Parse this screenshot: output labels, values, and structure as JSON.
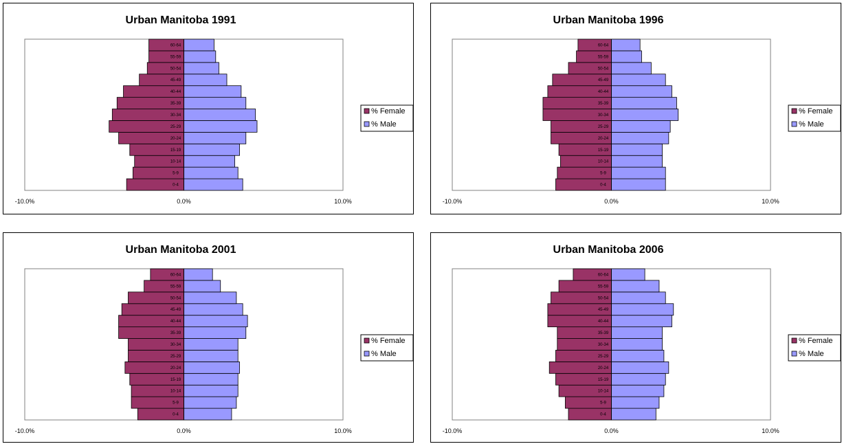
{
  "colors": {
    "female": "#993366",
    "male": "#9999ff",
    "border": "#000000",
    "plot_border": "#808080"
  },
  "chart_data": [
    {
      "type": "bar",
      "orientation": "horizontal",
      "layout": "population-pyramid",
      "title": "Urban Manitoba 1991",
      "categories": [
        "0-4",
        "5-9",
        "10-14",
        "15-19",
        "20-24",
        "25-29",
        "30-34",
        "35-39",
        "40-44",
        "45-49",
        "50-54",
        "55-59",
        "60-64"
      ],
      "series": [
        {
          "name": "% Female",
          "values": [
            -3.6,
            -3.2,
            -3.1,
            -3.4,
            -4.1,
            -4.7,
            -4.5,
            -4.2,
            -3.8,
            -2.8,
            -2.3,
            -2.2,
            -2.2
          ]
        },
        {
          "name": "% Male",
          "values": [
            3.7,
            3.4,
            3.2,
            3.5,
            3.9,
            4.6,
            4.5,
            3.9,
            3.6,
            2.7,
            2.2,
            2.0,
            1.9
          ]
        }
      ],
      "xlim": [
        -10,
        10
      ],
      "x_ticks": [
        "-10.0%",
        "0.0%",
        "10.0%"
      ],
      "legend_position": "right"
    },
    {
      "type": "bar",
      "orientation": "horizontal",
      "layout": "population-pyramid",
      "title": "Urban Manitoba 1996",
      "categories": [
        "0-4",
        "5-9",
        "10-14",
        "15-19",
        "20-24",
        "25-29",
        "30-34",
        "35-39",
        "40-44",
        "45-49",
        "50-54",
        "55-59",
        "60-64"
      ],
      "series": [
        {
          "name": "% Female",
          "values": [
            -3.5,
            -3.4,
            -3.2,
            -3.3,
            -3.8,
            -3.8,
            -4.3,
            -4.3,
            -4.0,
            -3.7,
            -2.7,
            -2.2,
            -2.1
          ]
        },
        {
          "name": "% Male",
          "values": [
            3.4,
            3.4,
            3.2,
            3.2,
            3.6,
            3.7,
            4.2,
            4.1,
            3.8,
            3.4,
            2.5,
            1.9,
            1.8
          ]
        }
      ],
      "xlim": [
        -10,
        10
      ],
      "x_ticks": [
        "-10.0%",
        "0.0%",
        "10.0%"
      ],
      "legend_position": "right"
    },
    {
      "type": "bar",
      "orientation": "horizontal",
      "layout": "population-pyramid",
      "title": "Urban Manitoba 2001",
      "categories": [
        "0-4",
        "5-9",
        "10-14",
        "15-19",
        "20-24",
        "25-29",
        "30-34",
        "35-39",
        "40-44",
        "45-49",
        "50-54",
        "55-59",
        "60-64"
      ],
      "series": [
        {
          "name": "% Female",
          "values": [
            -2.9,
            -3.3,
            -3.3,
            -3.4,
            -3.7,
            -3.5,
            -3.5,
            -4.1,
            -4.1,
            -3.9,
            -3.5,
            -2.5,
            -2.1
          ]
        },
        {
          "name": "% Male",
          "values": [
            3.0,
            3.3,
            3.4,
            3.4,
            3.5,
            3.4,
            3.4,
            3.9,
            4.0,
            3.7,
            3.3,
            2.3,
            1.8
          ]
        }
      ],
      "xlim": [
        -10,
        10
      ],
      "x_ticks": [
        "-10.0%",
        "0.0%",
        "10.0%"
      ],
      "legend_position": "right"
    },
    {
      "type": "bar",
      "orientation": "horizontal",
      "layout": "population-pyramid",
      "title": "Urban Manitoba 2006",
      "categories": [
        "0-4",
        "5-9",
        "10-14",
        "15-19",
        "20-24",
        "25-29",
        "30-34",
        "35-39",
        "40-44",
        "45-49",
        "50-54",
        "55-59",
        "60-64"
      ],
      "series": [
        {
          "name": "% Female",
          "values": [
            -2.7,
            -2.9,
            -3.3,
            -3.5,
            -3.9,
            -3.5,
            -3.4,
            -3.4,
            -4.0,
            -4.0,
            -3.8,
            -3.3,
            -2.4
          ]
        },
        {
          "name": "% Male",
          "values": [
            2.8,
            3.0,
            3.3,
            3.4,
            3.6,
            3.3,
            3.2,
            3.2,
            3.8,
            3.9,
            3.4,
            3.0,
            2.1
          ]
        }
      ],
      "xlim": [
        -10,
        10
      ],
      "x_ticks": [
        "-10.0%",
        "0.0%",
        "10.0%"
      ],
      "legend_position": "right"
    }
  ]
}
